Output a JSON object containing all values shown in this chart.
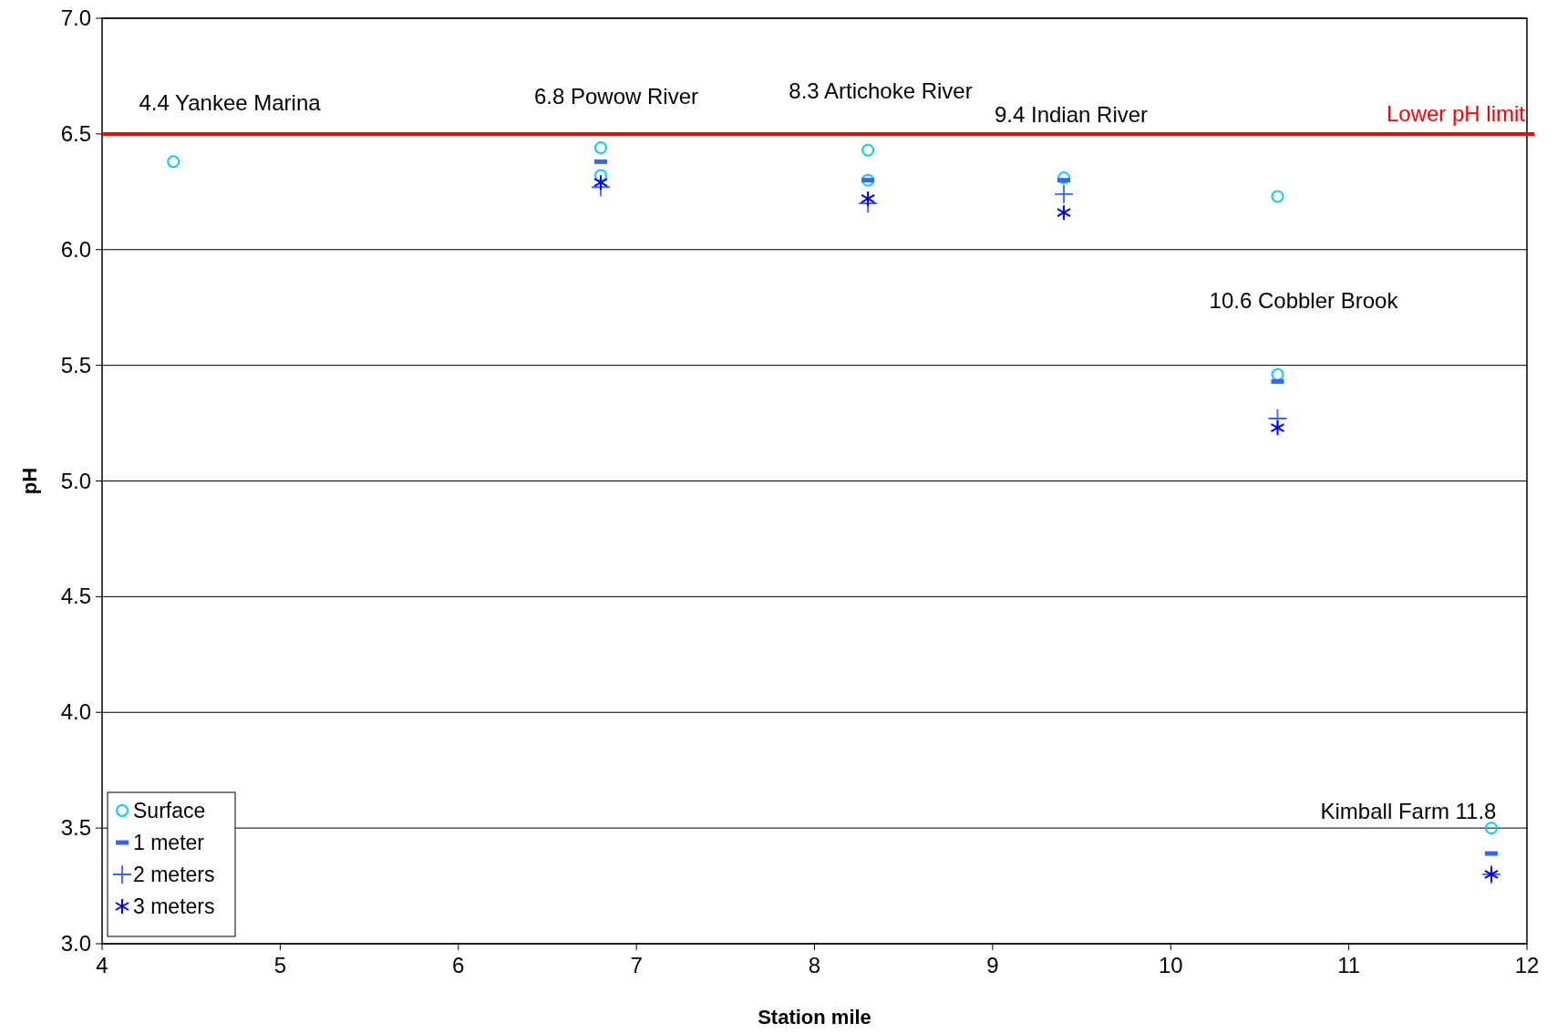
{
  "chart_data": {
    "type": "scatter",
    "xlabel": "Station mile",
    "ylabel": "pH",
    "xlim": [
      4,
      12
    ],
    "xticks": [
      4,
      5,
      6,
      7,
      8,
      9,
      10,
      11,
      12
    ],
    "ylim": [
      3.0,
      7.0
    ],
    "yticks": [
      {
        "value": 3,
        "label": "3.0"
      },
      {
        "value": 3.5,
        "label": "3.5"
      },
      {
        "value": 4,
        "label": "4.0"
      },
      {
        "value": 4.5,
        "label": "4.5"
      },
      {
        "value": 5,
        "label": "5.0"
      },
      {
        "value": 5.5,
        "label": "5.5"
      },
      {
        "value": 6,
        "label": "6.0"
      },
      {
        "value": 6.5,
        "label": "6.5"
      },
      {
        "value": 7,
        "label": "7.0"
      }
    ],
    "grid": "y",
    "legend": "bottom left",
    "series": [
      {
        "name": "Surface",
        "color": "#00ccff",
        "marker": "circle",
        "x": [
          4.4,
          6.8,
          6.8,
          8.3,
          8.3,
          9.4,
          10.6,
          10.6,
          11.8
        ],
        "values": [
          6.38,
          6.44,
          6.32,
          6.43,
          6.3,
          6.31,
          6.23,
          5.46,
          3.5
        ]
      },
      {
        "name": "1 meter",
        "color": "#3366ff",
        "x": [
          6.8,
          8.3,
          9.4,
          10.6,
          11.8
        ],
        "values": [
          6.38,
          6.3,
          6.3,
          5.43,
          3.39
        ]
      },
      {
        "name": "2 meters",
        "color": "#3366ff",
        "marker": "cross",
        "x": [
          6.8,
          8.3,
          9.4,
          10.6,
          11.8
        ],
        "values": [
          6.27,
          6.2,
          6.24,
          5.27,
          3.3
        ]
      },
      {
        "name": "3 meters",
        "color": "#0000ff",
        "x": [
          6.8,
          8.3,
          9.4,
          10.6,
          11.8
        ],
        "values": [
          6.29,
          6.22,
          6.16,
          5.23,
          3.3
        ]
      }
    ],
    "ref_lines": [
      {
        "axis": "y",
        "value": 6.5,
        "label": "Lower pH limit",
        "color": "#ff0000"
      }
    ],
    "annotations": [
      "4.4 Yankee Marina",
      "6.8 Powow River",
      "8.3 Artichoke River",
      "9.4 Indian River",
      "10.6 Cobbler Brook",
      "Kimball Farm 11.8"
    ]
  }
}
